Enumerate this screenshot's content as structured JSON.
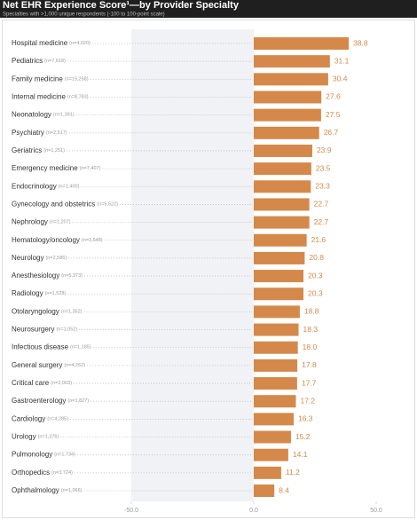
{
  "chart_data": {
    "type": "bar",
    "orientation": "horizontal",
    "title": "Net EHR Experience Score¹—by Provider Specialty",
    "subtitle": "Specialties with >1,000 unique respondents (-100 to 100-point scale)",
    "categories": [
      "Hospital medicine",
      "Pediatrics",
      "Family medicine",
      "Internal medicine",
      "Neonatology",
      "Psychiatry",
      "Geriatrics",
      "Emergency medicine",
      "Endocrinology",
      "Gynecology and obstetrics",
      "Nephrology",
      "Hematology/oncology",
      "Neurology",
      "Anesthesiology",
      "Radiology",
      "Otolaryngology",
      "Neurosurgery",
      "Infectious disease",
      "General surgery",
      "Critical care",
      "Gastroenterology",
      "Cardiology",
      "Urology",
      "Pulmonology",
      "Orthopedics",
      "Ophthalmology"
    ],
    "sample_sizes": [
      "(n=4,020)",
      "(n=7,618)",
      "(n=15,258)",
      "(n=8,783)",
      "(n=1,391)",
      "(n=2,517)",
      "(n=1,251)",
      "(n=7,407)",
      "(n=1,400)",
      "(n=5,522)",
      "(n=1,207)",
      "(n=3,648)",
      "(n=2,586)",
      "(n=5,373)",
      "(n=1,528)",
      "(n=1,352)",
      "(n=1,052)",
      "(n=1,185)",
      "(n=4,262)",
      "(n=2,003)",
      "(n=1,827)",
      "(n=4,285)",
      "(n=1,376)",
      "(n=1,734)",
      "(n=3,724)",
      "(n=1,066)"
    ],
    "values": [
      38.8,
      31.1,
      30.4,
      27.6,
      27.5,
      26.7,
      23.9,
      23.5,
      23.3,
      22.7,
      22.7,
      21.6,
      20.8,
      20.3,
      20.3,
      18.8,
      18.3,
      18.0,
      17.8,
      17.7,
      17.2,
      16.3,
      15.2,
      14.1,
      11.2,
      8.4
    ],
    "value_labels": [
      "38.8",
      "31.1",
      "30.4",
      "27.6",
      "27.5",
      "26.7",
      "23.9",
      "23.5",
      "23.3",
      "22.7",
      "22.7",
      "21.6",
      "20.8",
      "20.3",
      "20.3",
      "18.8",
      "18.3",
      "18.0",
      "17.8",
      "17.7",
      "17.2",
      "16.3",
      "15.2",
      "14.1",
      "11.2",
      "8.4"
    ],
    "color": "#d4894a",
    "xlim": [
      -50,
      50
    ],
    "xticks": [
      {
        "value": -50,
        "label": "-50.0"
      },
      {
        "value": 0,
        "label": "0.0"
      },
      {
        "value": 50,
        "label": "50.0"
      }
    ]
  }
}
